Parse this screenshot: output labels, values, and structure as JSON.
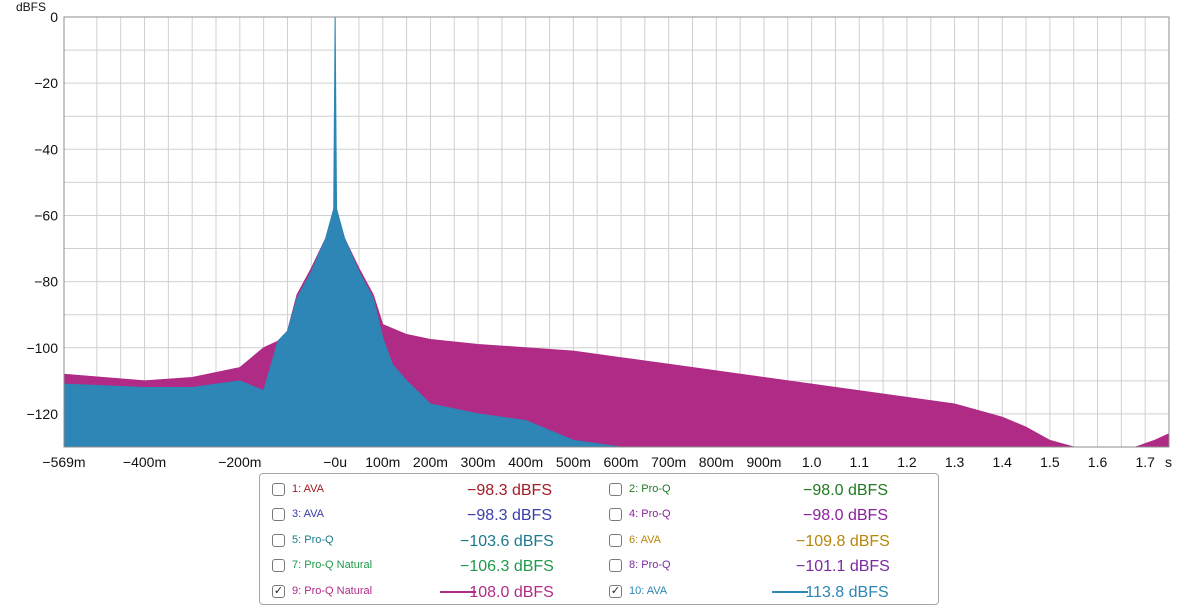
{
  "chart_data": {
    "type": "area",
    "ylabel": "dBFS",
    "xlabel": "",
    "ylim": [
      -130,
      0
    ],
    "xlim": [
      -0.569,
      1.75
    ],
    "y_ticks": [
      {
        "value": 0,
        "label": "0"
      },
      {
        "value": -20,
        "label": "−20"
      },
      {
        "value": -40,
        "label": "−40"
      },
      {
        "value": -60,
        "label": "−60"
      },
      {
        "value": -80,
        "label": "−80"
      },
      {
        "value": -100,
        "label": "−100"
      },
      {
        "value": -120,
        "label": "−120"
      }
    ],
    "x_ticks": [
      {
        "value": -0.569,
        "label": "−569m"
      },
      {
        "value": -0.4,
        "label": "−400m"
      },
      {
        "value": -0.2,
        "label": "−200m"
      },
      {
        "value": 0.0,
        "label": "−0u"
      },
      {
        "value": 0.1,
        "label": "100m"
      },
      {
        "value": 0.2,
        "label": "200m"
      },
      {
        "value": 0.3,
        "label": "300m"
      },
      {
        "value": 0.4,
        "label": "400m"
      },
      {
        "value": 0.5,
        "label": "500m"
      },
      {
        "value": 0.6,
        "label": "600m"
      },
      {
        "value": 0.7,
        "label": "700m"
      },
      {
        "value": 0.8,
        "label": "800m"
      },
      {
        "value": 0.9,
        "label": "900m"
      },
      {
        "value": 1.0,
        "label": "1.0"
      },
      {
        "value": 1.1,
        "label": "1.1"
      },
      {
        "value": 1.2,
        "label": "1.2"
      },
      {
        "value": 1.3,
        "label": "1.3"
      },
      {
        "value": 1.4,
        "label": "1.4"
      },
      {
        "value": 1.5,
        "label": "1.5"
      },
      {
        "value": 1.6,
        "label": "1.6"
      },
      {
        "value": 1.7,
        "label": "1.7"
      }
    ],
    "x_unit_label": "s",
    "grid": true,
    "series": [
      {
        "name": "9: Pro-Q Natural",
        "color": "#b02b85",
        "x": [
          -0.569,
          -0.4,
          -0.3,
          -0.2,
          -0.15,
          -0.12,
          -0.1,
          -0.08,
          -0.05,
          -0.02,
          0.0,
          0.02,
          0.05,
          0.08,
          0.1,
          0.15,
          0.2,
          0.3,
          0.4,
          0.5,
          0.6,
          0.7,
          0.8,
          0.9,
          1.0,
          1.1,
          1.2,
          1.3,
          1.4,
          1.45,
          1.5,
          1.55,
          1.6,
          1.65,
          1.68,
          1.72,
          1.75
        ],
        "y": [
          -108,
          -110,
          -109,
          -106,
          -100,
          -98,
          -95,
          -84,
          -76,
          -67,
          -58,
          -67,
          -76,
          -84,
          -93,
          -96,
          -97.5,
          -99,
          -100,
          -101,
          -103,
          -105,
          -107,
          -109,
          -111,
          -113,
          -115,
          -117,
          -121,
          -124,
          -128,
          -130,
          -130,
          -130,
          -130,
          -128,
          -126
        ]
      },
      {
        "name": "10: AVA",
        "color": "#2d86b5",
        "x": [
          -0.569,
          -0.4,
          -0.3,
          -0.2,
          -0.15,
          -0.12,
          -0.1,
          -0.08,
          -0.05,
          -0.02,
          -0.003,
          0.0,
          0.003,
          0.02,
          0.05,
          0.08,
          0.1,
          0.12,
          0.15,
          0.2,
          0.3,
          0.4,
          0.5,
          0.6,
          0.7,
          0.8,
          0.9,
          1.0,
          1.2,
          1.4,
          1.5,
          1.6,
          1.7,
          1.75
        ],
        "y": [
          -111,
          -112,
          -112,
          -110,
          -113,
          -98,
          -95,
          -85,
          -77,
          -67,
          -58,
          0,
          -58,
          -67,
          -77,
          -85,
          -97,
          -105,
          -110,
          -117,
          -120,
          -122,
          -128,
          -130,
          -130,
          -130,
          -130,
          -130,
          -130,
          -130,
          -130,
          -130,
          -130,
          -130
        ]
      }
    ]
  },
  "legend": {
    "items": [
      {
        "label": "1: AVA",
        "value": "−98.3 dBFS",
        "checked": false,
        "color": "#a11c24"
      },
      {
        "label": "2: Pro-Q",
        "value": "−98.0 dBFS",
        "checked": false,
        "color": "#1f7a22"
      },
      {
        "label": "3: AVA",
        "value": "−98.3 dBFS",
        "checked": false,
        "color": "#3a3ea8"
      },
      {
        "label": "4: Pro-Q",
        "value": "−98.0 dBFS",
        "checked": false,
        "color": "#8a1f9a"
      },
      {
        "label": "5: Pro-Q",
        "value": "−103.6 dBFS",
        "checked": false,
        "color": "#1a7a8c"
      },
      {
        "label": "6: AVA",
        "value": "−109.8 dBFS",
        "checked": false,
        "color": "#b8860b"
      },
      {
        "label": "7: Pro-Q Natural",
        "value": "−106.3 dBFS",
        "checked": false,
        "color": "#1f9a4a"
      },
      {
        "label": "8: Pro-Q",
        "value": "−101.1 dBFS",
        "checked": false,
        "color": "#7a2aa0"
      },
      {
        "label": "9: Pro-Q Natural",
        "value": "−108.0 dBFS",
        "checked": true,
        "color": "#b02b85"
      },
      {
        "label": "10: AVA",
        "value": "−113.8 dBFS",
        "checked": true,
        "color": "#2d86b5"
      }
    ],
    "check_mark": "✓"
  }
}
